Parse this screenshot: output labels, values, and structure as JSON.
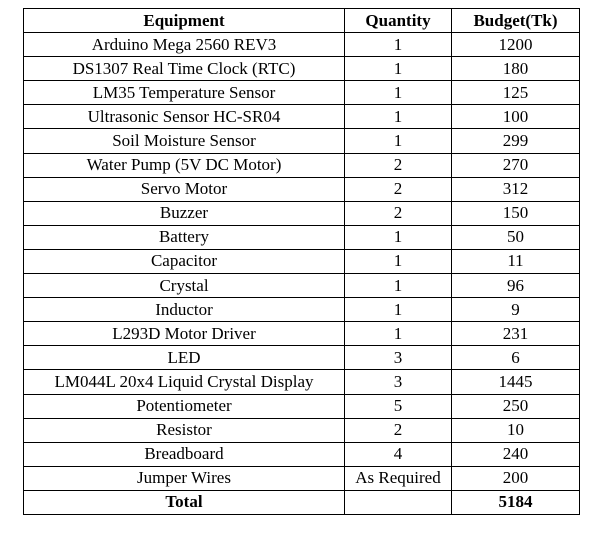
{
  "table": {
    "headers": [
      "Equipment",
      "Quantity",
      "Budget(Tk)"
    ],
    "rows": [
      [
        "Arduino Mega 2560 REV3",
        "1",
        "1200"
      ],
      [
        "DS1307 Real Time Clock (RTC)",
        "1",
        "180"
      ],
      [
        "LM35 Temperature Sensor",
        "1",
        "125"
      ],
      [
        "Ultrasonic Sensor HC-SR04",
        "1",
        "100"
      ],
      [
        "Soil Moisture Sensor",
        "1",
        "299"
      ],
      [
        "Water Pump (5V DC Motor)",
        "2",
        "270"
      ],
      [
        "Servo Motor",
        "2",
        "312"
      ],
      [
        "Buzzer",
        "2",
        "150"
      ],
      [
        "Battery",
        "1",
        "50"
      ],
      [
        "Capacitor",
        "1",
        "11"
      ],
      [
        "Crystal",
        "1",
        "96"
      ],
      [
        "Inductor",
        "1",
        "9"
      ],
      [
        "L293D Motor Driver",
        "1",
        "231"
      ],
      [
        "LED",
        "3",
        "6"
      ],
      [
        "LM044L 20x4 Liquid Crystal Display",
        "3",
        "1445"
      ],
      [
        "Potentiometer",
        "5",
        "250"
      ],
      [
        "Resistor",
        "2",
        "10"
      ],
      [
        "Breadboard",
        "4",
        "240"
      ],
      [
        "Jumper Wires",
        "As Required",
        "200"
      ]
    ],
    "total_label": "Total",
    "total_value": "5184"
  }
}
